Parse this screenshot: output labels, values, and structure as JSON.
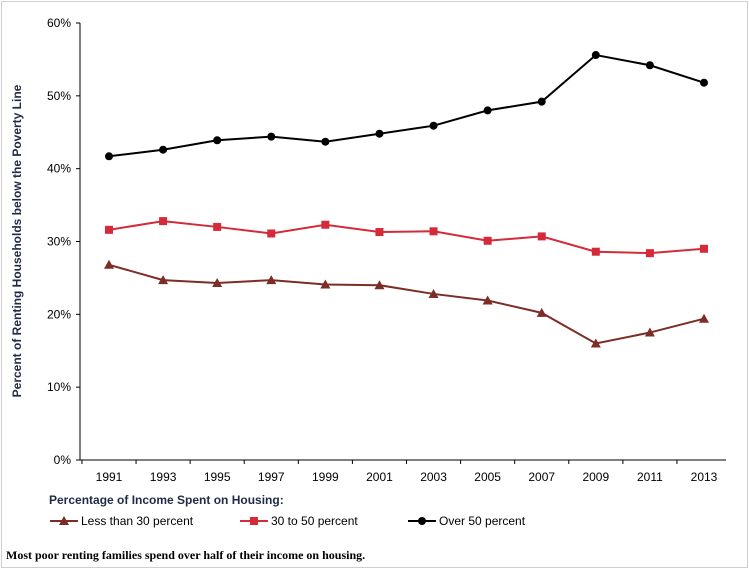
{
  "chart_data": {
    "type": "line",
    "ylabel": "Percent of Renting Households below the Poverty Line",
    "ylim": [
      0,
      60
    ],
    "yticks": [
      "0%",
      "10%",
      "20%",
      "30%",
      "40%",
      "50%",
      "60%"
    ],
    "x": [
      "1991",
      "1993",
      "1995",
      "1997",
      "1999",
      "2001",
      "2003",
      "2005",
      "2007",
      "2009",
      "2011",
      "2013"
    ],
    "grid": false,
    "legend_title": "Percentage of Income Spent on Housing:",
    "legend_position": "bottom",
    "series": [
      {
        "name": "Less than 30 percent",
        "marker": "triangle",
        "color": "#7b2d26",
        "values": [
          26.8,
          24.7,
          24.3,
          24.7,
          24.1,
          24.0,
          22.8,
          21.9,
          20.2,
          16.0,
          17.5,
          19.4
        ]
      },
      {
        "name": "30 to 50 percent",
        "marker": "square",
        "color": "#d42a3a",
        "values": [
          31.6,
          32.8,
          32.0,
          31.1,
          32.3,
          31.3,
          31.4,
          30.1,
          30.7,
          28.6,
          28.4,
          29.0
        ]
      },
      {
        "name": "Over 50 percent",
        "marker": "circle",
        "color": "#000000",
        "values": [
          41.7,
          42.6,
          43.9,
          44.4,
          43.7,
          44.8,
          45.9,
          48.0,
          49.2,
          55.6,
          54.2,
          51.8
        ]
      }
    ]
  },
  "caption": "Most poor renting families spend over half of their income on housing."
}
